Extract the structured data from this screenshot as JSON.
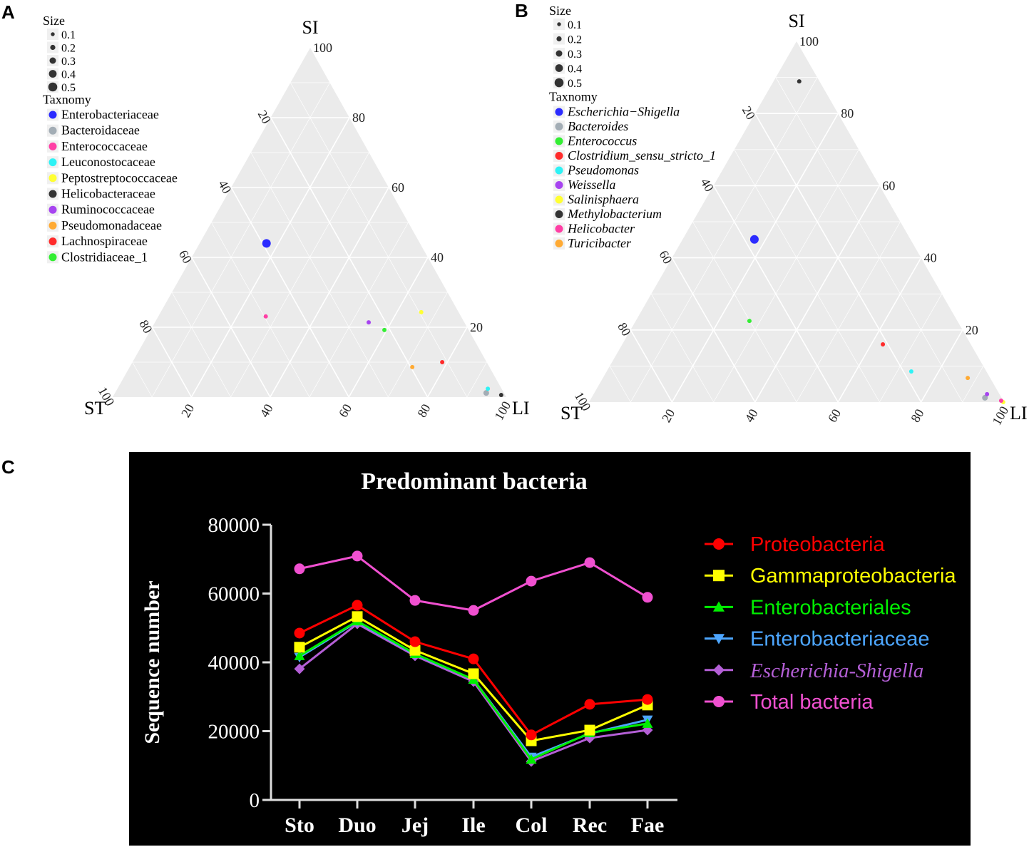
{
  "panel_labels": {
    "a": "A",
    "b": "B",
    "c": "C"
  },
  "chart_data": [
    {
      "type": "scatter",
      "subtype": "ternary",
      "panel": "A",
      "axes": {
        "top": "SI",
        "left": "ST",
        "right": "LI"
      },
      "ticks": [
        "20",
        "40",
        "60",
        "80",
        "100"
      ],
      "grid": true,
      "background": "#ebebeb",
      "size_legend": {
        "title": "Size",
        "values": [
          "0.1",
          "0.2",
          "0.3",
          "0.4",
          "0.5"
        ]
      },
      "legend_title": "Taxnomy",
      "italic": false,
      "points": [
        {
          "name": "Enterobacteriaceae",
          "color": "#2b2bff",
          "ST": 39,
          "SI": 44,
          "LI": 17,
          "size": 0.4
        },
        {
          "name": "Bacteroidaceae",
          "color": "#a3adb5",
          "ST": 4.5,
          "SI": 1.2,
          "LI": 94.3,
          "size": 0.2
        },
        {
          "name": "Enterococcaceae",
          "color": "#ff3fa5",
          "ST": 49.6,
          "SI": 23.1,
          "LI": 27.3,
          "size": 0.1
        },
        {
          "name": "Leuconostocaceae",
          "color": "#2ef2f5",
          "ST": 3.5,
          "SI": 2.4,
          "LI": 94.1,
          "size": 0.1
        },
        {
          "name": "Peptostreptococcaceae",
          "color": "#ffff33",
          "ST": 9.5,
          "SI": 24.3,
          "LI": 66.2,
          "size": 0.1
        },
        {
          "name": "Helicobacteraceae",
          "color": "#333333",
          "ST": 1,
          "SI": 0.6,
          "LI": 98.4,
          "size": 0.1
        },
        {
          "name": "Ruminococcaceae",
          "color": "#a744f0",
          "ST": 24.3,
          "SI": 21.4,
          "LI": 54.3,
          "size": 0.1
        },
        {
          "name": "Pseudomonadaceae",
          "color": "#ffaa33",
          "ST": 19.6,
          "SI": 8.6,
          "LI": 71.8,
          "size": 0.1
        },
        {
          "name": "Lachnospiraceae",
          "color": "#ff2b2b",
          "ST": 11.3,
          "SI": 10,
          "LI": 78.7,
          "size": 0.1
        },
        {
          "name": "Clostridiaceae_1",
          "color": "#33ee33",
          "ST": 21.4,
          "SI": 19.2,
          "LI": 59.4,
          "size": 0.1
        }
      ]
    },
    {
      "type": "scatter",
      "subtype": "ternary",
      "panel": "B",
      "axes": {
        "top": "SI",
        "left": "ST",
        "right": "LI"
      },
      "ticks": [
        "20",
        "40",
        "60",
        "80",
        "100"
      ],
      "grid": true,
      "background": "#ebebeb",
      "size_legend": {
        "title": "Size",
        "values": [
          "0.1",
          "0.2",
          "0.3",
          "0.4",
          "0.5"
        ]
      },
      "legend_title": "Taxnomy",
      "italic": true,
      "points": [
        {
          "name": "Escherichia−Shigella",
          "color": "#2b2bff",
          "ST": 37.6,
          "SI": 45.1,
          "LI": 17.3,
          "size": 0.4
        },
        {
          "name": "Bacteroides",
          "color": "#a3adb5",
          "ST": 4,
          "SI": 1.2,
          "LI": 94.8,
          "size": 0.2
        },
        {
          "name": "Enterococcus",
          "color": "#33ee33",
          "ST": 50.1,
          "SI": 22.5,
          "LI": 27.4,
          "size": 0.1
        },
        {
          "name": "Clostridium_sensu_stricto_1",
          "color": "#ff2b2b",
          "ST": 21.2,
          "SI": 16,
          "LI": 62.8,
          "size": 0.1
        },
        {
          "name": "Pseudomonas",
          "color": "#2ef2f5",
          "ST": 18.1,
          "SI": 8.5,
          "LI": 73.4,
          "size": 0.1
        },
        {
          "name": "Weissella",
          "color": "#a744f0",
          "ST": 3,
          "SI": 2.2,
          "LI": 94.8,
          "size": 0.1
        },
        {
          "name": "Salinisphaera",
          "color": "#ffff33",
          "ST": 0.2,
          "SI": 0,
          "LI": 99.8,
          "size": 0.1
        },
        {
          "name": "Methylobacterium",
          "color": "#333333",
          "ST": 4.9,
          "SI": 88.9,
          "LI": 6.2,
          "size": 0.1
        },
        {
          "name": "Helicobacter",
          "color": "#ff3fa5",
          "ST": 0.5,
          "SI": 0.4,
          "LI": 99.1,
          "size": 0.1
        },
        {
          "name": "Turicibacter",
          "color": "#ffaa33",
          "ST": 5.4,
          "SI": 6.7,
          "LI": 87.9,
          "size": 0.1
        }
      ]
    },
    {
      "type": "line",
      "panel": "C",
      "title": "Predominant bacteria",
      "xlabel": "",
      "ylabel": "Sequence number",
      "ylim": [
        0,
        80000
      ],
      "yticks": [
        "0",
        "20000",
        "40000",
        "60000",
        "80000"
      ],
      "categories": [
        "Sto",
        "Duo",
        "Jej",
        "Ile",
        "Col",
        "Rec",
        "Fae"
      ],
      "background": "#000000",
      "legend_position": "right",
      "series": [
        {
          "name": "Proteobacteria",
          "color": "#ff0000",
          "marker": "circle",
          "italic": false,
          "values": [
            48500,
            56600,
            46000,
            41000,
            18900,
            27800,
            29200
          ]
        },
        {
          "name": "Gammaproteobacteria",
          "color": "#ffff00",
          "marker": "square",
          "italic": false,
          "values": [
            44400,
            53300,
            43500,
            36700,
            17200,
            20300,
            27600
          ]
        },
        {
          "name": "Enterobacteriales",
          "color": "#00ee00",
          "marker": "triangle-up",
          "italic": false,
          "values": [
            41900,
            52000,
            42500,
            35000,
            11800,
            19500,
            22200
          ]
        },
        {
          "name": "Enterobacteriaceae",
          "color": "#4da6ff",
          "marker": "triangle-down",
          "italic": false,
          "values": [
            41500,
            51800,
            42300,
            35000,
            12500,
            19300,
            23300
          ]
        },
        {
          "name": "Escherichia-Shigella",
          "color": "#b45fd6",
          "marker": "diamond",
          "italic": true,
          "values": [
            38100,
            51200,
            41900,
            34400,
            11200,
            18000,
            20300
          ]
        },
        {
          "name": "Total bacteria",
          "color": "#f050d0",
          "marker": "circle",
          "italic": false,
          "values": [
            67200,
            70900,
            58000,
            55100,
            63600,
            69000,
            58900
          ]
        }
      ]
    }
  ]
}
